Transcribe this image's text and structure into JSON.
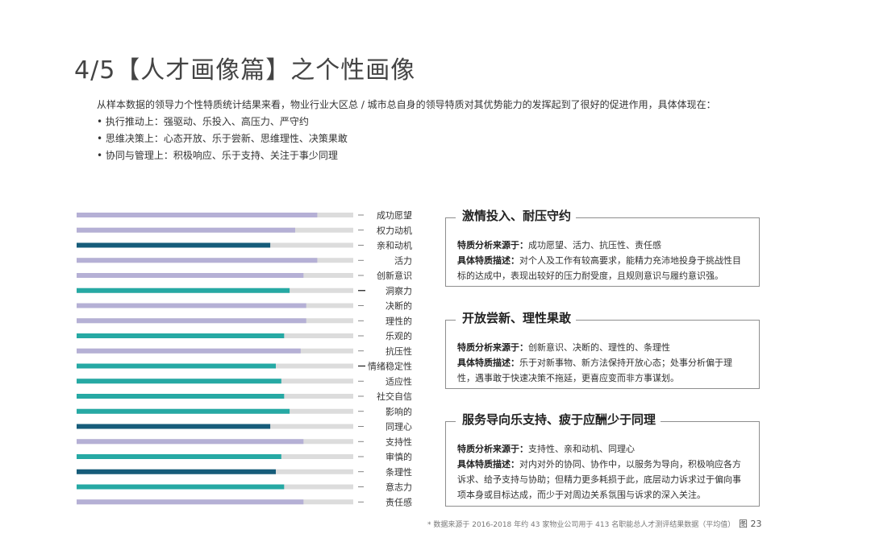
{
  "title": "4/5【人才画像篇】之个性画像",
  "intro": {
    "lead": "从样本数据的领导力个性特质统计结果来看，物业行业大区总 / 城市总自身的领导特质对其优势能力的发挥起到了很好的促进作用，具体体现在：",
    "bullets": [
      "• 执行推动上：强驱动、乐投入、高压力、严守约",
      "• 思维决策上：心态开放、乐于尝新、思维理性、决策果敢",
      "• 协同与管理上：积极响应、乐于支持、关注于事少同理"
    ]
  },
  "colors": {
    "lavender": "#b5b0d5",
    "teal": "#26a9a4",
    "navy": "#165c7a",
    "track": "#dcdcdc"
  },
  "chart_data": {
    "type": "bar",
    "orientation": "horizontal",
    "categories": [
      "成功愿望",
      "权力动机",
      "亲和动机",
      "活力",
      "创新意识",
      "洞察力",
      "决断的",
      "理性的",
      "乐观的",
      "抗压性",
      "情绪稳定性",
      "适应性",
      "社交自信",
      "影响的",
      "同理心",
      "支持性",
      "审慎的",
      "条理性",
      "意志力",
      "责任感"
    ],
    "values": [
      0.87,
      0.79,
      0.7,
      0.87,
      0.82,
      0.77,
      0.83,
      0.83,
      0.75,
      0.81,
      0.72,
      0.74,
      0.75,
      0.77,
      0.7,
      0.82,
      0.74,
      0.72,
      0.75,
      0.82
    ],
    "colors": [
      "lavender",
      "lavender",
      "navy",
      "lavender",
      "lavender",
      "teal",
      "lavender",
      "lavender",
      "teal",
      "lavender",
      "teal",
      "teal",
      "teal",
      "teal",
      "navy",
      "lavender",
      "teal",
      "navy",
      "teal",
      "lavender"
    ],
    "highlighted": [
      "洞察力",
      "情绪稳定性"
    ],
    "xlim": [
      0,
      1
    ],
    "grid": false,
    "legend": "none"
  },
  "boxes": [
    {
      "title": "激情投入、耐压守约",
      "source_label": "特质分析来源于：",
      "source": "成功愿望、活力、抗压性、责任感",
      "desc_label": "具体特质描述：",
      "desc": "对个人及工作有较高要求，能精力充沛地投身于挑战性目标的达成中，表现出较好的压力耐受度，且规则意识与履约意识强。"
    },
    {
      "title": "开放尝新、理性果敢",
      "source_label": "特质分析来源于：",
      "source": "创新意识、决断的、理性的、条理性",
      "desc_label": "具体特质描述：",
      "desc": "乐于对新事物、新方法保持开放心态；处事分析偏于理性，遇事敢于快速决策不拖延，更喜应变而非方事谋划。"
    },
    {
      "title": "服务导向乐支持、疲于应酬少于同理",
      "source_label": "特质分析来源于：",
      "source": "支持性、亲和动机、同理心",
      "desc_label": "具体特质描述：",
      "desc": "对内对外的协同、协作中，以服务为导向，积极响应各方诉求、给予支持与协助；但精力更多耗损于此，底层动力诉求过于偏向事项本身或目标达成，而少于对周边关系氛围与诉求的深入关注。"
    }
  ],
  "footnote": "* 数据来源于 2016-2018 年约 43 家物业公司用于 413 名职能总人才测评结果数据（平均值）",
  "page": "图 23"
}
